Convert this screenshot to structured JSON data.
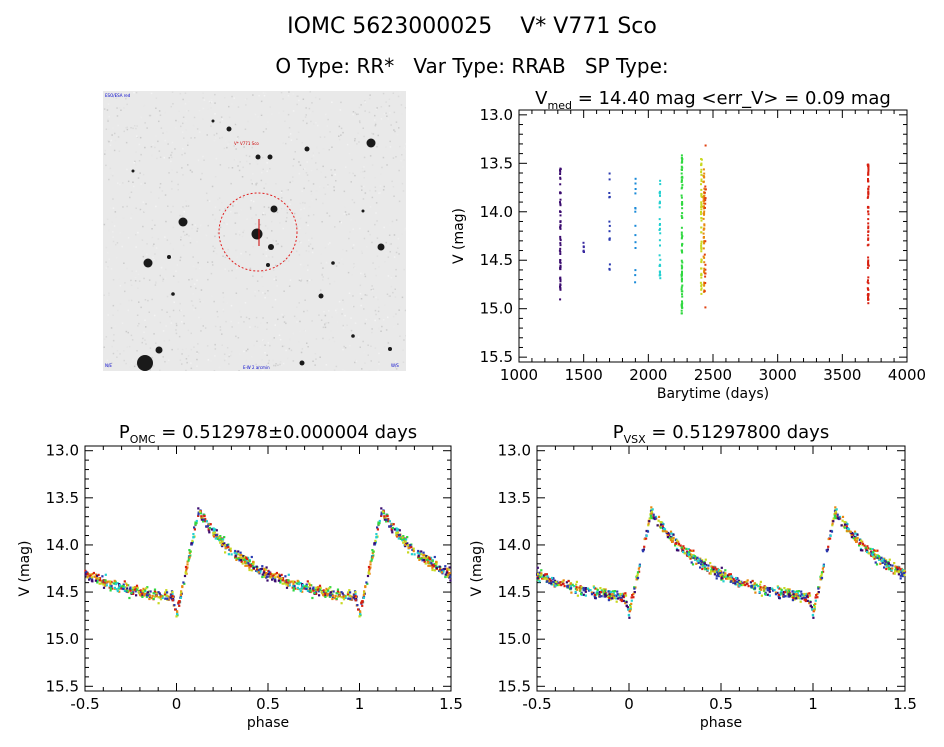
{
  "header": {
    "line1": "IOMC 5623000025    V* V771 Sco",
    "line2": "O Type: RR*   Var Type: RRAB   SP Type:"
  },
  "finder_chart": {
    "label_top_left": "ESO/ESA red",
    "label_target": "V* V771 Sco",
    "label_bottom_center": "E-W 2 arcmin",
    "label_bottom_left": "N/E",
    "label_bottom_right": "W/S",
    "colors": {
      "background": "#e9e9e9",
      "stars": "#1a1a1a",
      "circle": "#e02020",
      "labels": "#0000cc"
    }
  },
  "chart_data": [
    {
      "id": "lightcurve",
      "type": "scatter",
      "title": {
        "main": "V",
        "sub": "med",
        "rest": " = 14.40 mag <err_V> = 0.09 mag"
      },
      "xlabel": "Barytime (days)",
      "ylabel": "V (mag)",
      "xlim": [
        1000,
        4000
      ],
      "ylim": [
        15.55,
        12.95
      ],
      "y_inverted": true,
      "xticks": [
        1000,
        1500,
        2000,
        2500,
        3000,
        3500,
        4000
      ],
      "yticks": [
        13.0,
        13.5,
        14.0,
        14.5,
        15.0,
        15.5
      ],
      "groups": [
        {
          "x": 1320,
          "ymin": 13.55,
          "ymax": 14.95,
          "n": 60,
          "color": "#3a0a6e"
        },
        {
          "x": 1500,
          "ymin": 14.3,
          "ymax": 14.45,
          "n": 6,
          "color": "#3a2aa0"
        },
        {
          "x": 1700,
          "ymin": 13.6,
          "ymax": 14.6,
          "n": 14,
          "color": "#2a3ab0"
        },
        {
          "x": 1900,
          "ymin": 13.6,
          "ymax": 14.85,
          "n": 14,
          "color": "#1a8ad8"
        },
        {
          "x": 2090,
          "ymin": 13.55,
          "ymax": 14.7,
          "n": 30,
          "color": "#22d0d0"
        },
        {
          "x": 2260,
          "ymin": 13.4,
          "ymax": 15.05,
          "n": 80,
          "color": "#30d840"
        },
        {
          "x": 2410,
          "ymin": 13.45,
          "ymax": 14.85,
          "n": 60,
          "color": "#c8d820"
        },
        {
          "x": 2430,
          "ymin": 13.55,
          "ymax": 14.85,
          "n": 60,
          "color": "#e88a10"
        },
        {
          "x": 2440,
          "ymin": 13.25,
          "ymax": 15.05,
          "n": 20,
          "color": "#e04010"
        },
        {
          "x": 3700,
          "ymin": 13.5,
          "ymax": 14.95,
          "n": 70,
          "color": "#d82010"
        }
      ]
    },
    {
      "id": "phase-omc",
      "type": "scatter",
      "title": {
        "main": "P",
        "sub": "OMC",
        "rest": " = 0.512978±0.000004 days"
      },
      "xlabel": "phase",
      "ylabel": "V (mag)",
      "xlim": [
        -0.5,
        1.5
      ],
      "ylim": [
        15.55,
        12.95
      ],
      "y_inverted": true,
      "xticks": [
        -0.5,
        0.0,
        0.5,
        1.0,
        1.5
      ],
      "yticks": [
        13.0,
        13.5,
        14.0,
        14.5,
        15.0,
        15.5
      ],
      "curve": {
        "min_mag": 14.55,
        "max_mag": 13.65,
        "rise_start": 0.0,
        "peak": 0.12,
        "scatter": 0.1
      },
      "colors": [
        "#3a0a6e",
        "#2a3ab0",
        "#22d0d0",
        "#30d840",
        "#c8d820",
        "#e88a10",
        "#d82010"
      ]
    },
    {
      "id": "phase-vsx",
      "type": "scatter",
      "title": {
        "main": "P",
        "sub": "VSX",
        "rest": " = 0.51297800 days"
      },
      "xlabel": "phase",
      "ylabel": "V (mag)",
      "xlim": [
        -0.5,
        1.5
      ],
      "ylim": [
        15.55,
        12.95
      ],
      "y_inverted": true,
      "xticks": [
        -0.5,
        0.0,
        0.5,
        1.0,
        1.5
      ],
      "yticks": [
        13.0,
        13.5,
        14.0,
        14.5,
        15.0,
        15.5
      ],
      "curve": {
        "min_mag": 14.55,
        "max_mag": 13.65,
        "rise_start": 0.0,
        "peak": 0.12,
        "scatter": 0.1
      },
      "colors": [
        "#3a0a6e",
        "#2a3ab0",
        "#22d0d0",
        "#30d840",
        "#c8d820",
        "#e88a10",
        "#d82010"
      ]
    }
  ]
}
